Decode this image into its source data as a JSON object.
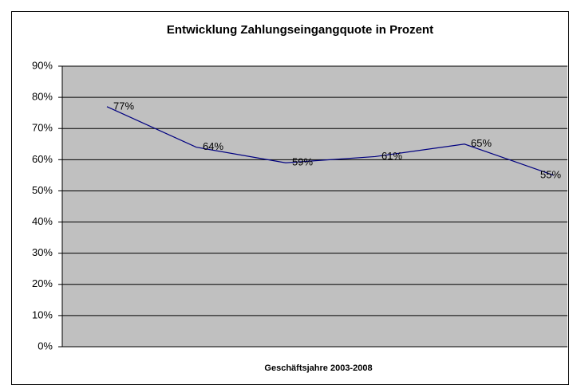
{
  "chart_data": {
    "type": "line",
    "title": "Entwicklung Zahlungseingangquote in Prozent",
    "x_label": "Geschäftsjahre 2003-2008",
    "categories": [
      null,
      null,
      null,
      null,
      null,
      null
    ],
    "series": [
      {
        "name": null,
        "color": "#000080",
        "values": [
          77,
          64,
          59,
          61,
          65,
          55
        ],
        "value_labels": [
          "77%",
          "64%",
          "59%",
          "61%",
          "65%",
          "55%"
        ]
      }
    ],
    "ylim": [
      0,
      90
    ],
    "yticks": [
      {
        "value": 0,
        "label": "0%"
      },
      {
        "value": 10,
        "label": "10%"
      },
      {
        "value": 20,
        "label": "20%"
      },
      {
        "value": 30,
        "label": "30%"
      },
      {
        "value": 40,
        "label": "40%"
      },
      {
        "value": 50,
        "label": "50%"
      },
      {
        "value": 60,
        "label": "60%"
      },
      {
        "value": 70,
        "label": "70%"
      },
      {
        "value": 80,
        "label": "80%"
      },
      {
        "value": 90,
        "label": "90%"
      }
    ],
    "grid": true,
    "plot_background": "#c0c0c0"
  }
}
